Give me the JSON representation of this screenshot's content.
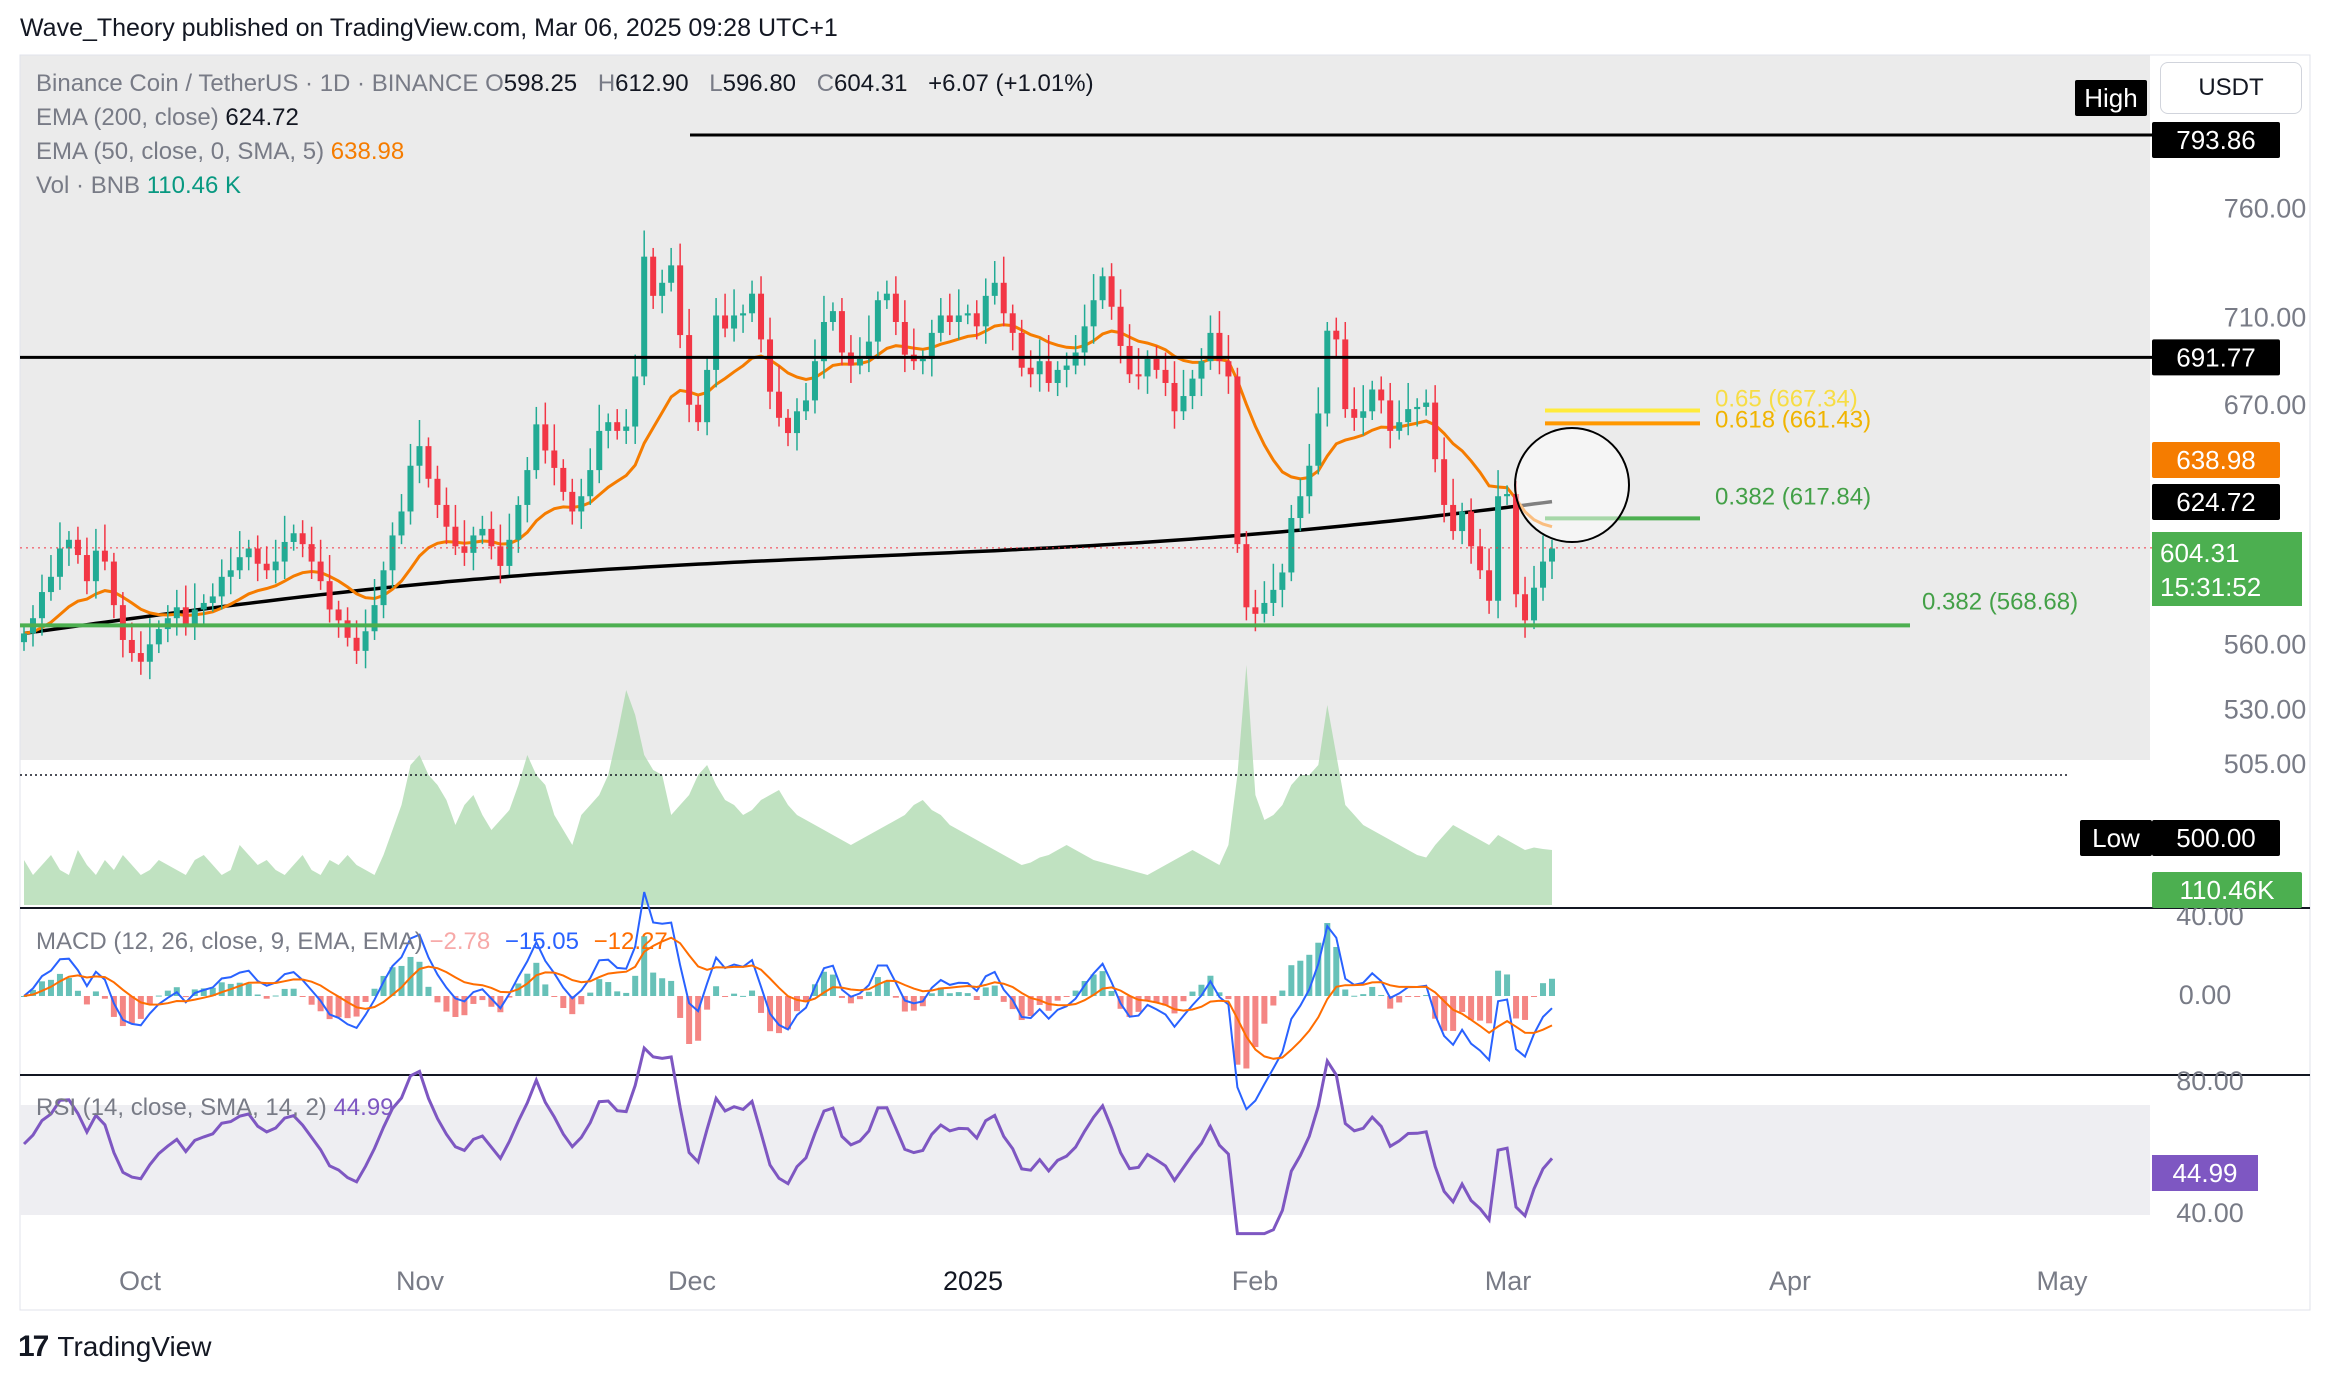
{
  "header": {
    "text": "Wave_Theory published on TradingView.com, Mar 06, 2025 09:28 UTC+1"
  },
  "legend": {
    "symbol": "Binance Coin / TetherUS · 1D · BINANCE",
    "o_label": "O",
    "o_value": "598.25",
    "h_label": "H",
    "h_value": "612.90",
    "l_label": "L",
    "l_value": "596.80",
    "c_label": "C",
    "c_value": "604.31",
    "change": "+6.07 (+1.01%)",
    "ema200_label": "EMA (200, close)",
    "ema200_value": "624.72",
    "ema50_label": "EMA (50, close, 0, SMA, 5)",
    "ema50_value": "638.98",
    "vol_label": "Vol · BNB",
    "vol_value": "110.46 K",
    "macd_label": "MACD (12, 26, close, 9, EMA, EMA)",
    "macd_hist": "−2.78",
    "macd_line": "−15.05",
    "macd_signal": "−12.27",
    "rsi_label": "RSI (14, close, SMA, 14, 2)",
    "rsi_value": "44.99"
  },
  "currency_button": "USDT",
  "brand": "TradingView",
  "colors": {
    "up": "#22ab94",
    "down": "#f23645",
    "ema50": "#f57c00",
    "ema200": "#000000",
    "macd": "#2962ff",
    "signal": "#ff6d00",
    "rsi": "#7e57c2",
    "fib_green": "#4caf50",
    "fib_yellow": "#ffeb3b",
    "fib_orange": "#ff9800",
    "price_badge": "#4caf50"
  },
  "chart_data": {
    "type": "candlestick",
    "symbol": "BNBUSDT",
    "timeframe": "1D",
    "x_ticks": [
      "Oct",
      "Nov",
      "Dec",
      "2025",
      "Feb",
      "Mar",
      "Apr",
      "May"
    ],
    "y_ticks": [
      "760.00",
      "710.00",
      "670.00",
      "560.00",
      "530.00",
      "505.00"
    ],
    "price_labels": {
      "high_tag": "High",
      "high": "793.86",
      "resistance": "691.77",
      "ema50": "638.98",
      "ema200": "624.72",
      "last": "604.31",
      "countdown": "15:31:52",
      "low_tag": "Low",
      "low": "500.00",
      "volume": "110.46K"
    },
    "fib_labels": {
      "f065": "0.65 (667.34)",
      "f0618": "0.618 (661.43)",
      "f0382_upper": "0.382 (617.84)",
      "f0382_lower": "0.382 (568.68)"
    },
    "levels": {
      "high": 793.86,
      "resistance": 691.77,
      "fib_0382_upper": 617.84,
      "fib_0382_lower": 568.68,
      "fib_0618": 661.43,
      "fib_065": 667.34,
      "low": 500.0
    },
    "macd_axis": [
      "40.00",
      "0.00"
    ],
    "rsi_axis": [
      "80.00",
      "44.99",
      "40.00"
    ],
    "closes": [
      565,
      572,
      584,
      591,
      604,
      608,
      601,
      589,
      603,
      598,
      578,
      562,
      556,
      552,
      560,
      567,
      572,
      577,
      568,
      576,
      579,
      582,
      591,
      594,
      600,
      604,
      597,
      594,
      598,
      607,
      611,
      606,
      598,
      589,
      576,
      571,
      563,
      557,
      566,
      578,
      594,
      610,
      621,
      642,
      651,
      636,
      624,
      614,
      605,
      602,
      610,
      613,
      605,
      596,
      608,
      624,
      640,
      661,
      649,
      641,
      630,
      621,
      628,
      640,
      658,
      662,
      658,
      660,
      683,
      738,
      720,
      726,
      734,
      702,
      670,
      662,
      686,
      711,
      705,
      711,
      712,
      721,
      700,
      676,
      664,
      657,
      667,
      672,
      690,
      708,
      713,
      694,
      688,
      691,
      699,
      718,
      721,
      708,
      693,
      690,
      691,
      703,
      711,
      708,
      711,
      712,
      706,
      720,
      726,
      712,
      703,
      687,
      684,
      690,
      680,
      686,
      688,
      694,
      706,
      718,
      729,
      715,
      697,
      684,
      683,
      691,
      686,
      680,
      667,
      674,
      682,
      690,
      703,
      690,
      683,
      606,
      577,
      574,
      579,
      585,
      593,
      618,
      628,
      642,
      666,
      704,
      700,
      668,
      664,
      667,
      677,
      672,
      658,
      662,
      668,
      669,
      671,
      645,
      624,
      612,
      621,
      605,
      594,
      580,
      628,
      629,
      583,
      571,
      586,
      598,
      604
    ],
    "volume_k": [
      90,
      60,
      80,
      100,
      70,
      60,
      110,
      80,
      60,
      90,
      70,
      100,
      80,
      60,
      70,
      90,
      80,
      70,
      60,
      90,
      100,
      80,
      60,
      70,
      120,
      100,
      80,
      90,
      70,
      60,
      80,
      100,
      70,
      60,
      90,
      80,
      100,
      80,
      70,
      60,
      100,
      150,
      200,
      280,
      300,
      260,
      240,
      210,
      160,
      200,
      220,
      180,
      150,
      170,
      190,
      240,
      300,
      260,
      240,
      180,
      150,
      120,
      180,
      200,
      220,
      260,
      340,
      430,
      380,
      300,
      270,
      260,
      180,
      200,
      220,
      260,
      280,
      240,
      210,
      200,
      180,
      190,
      210,
      220,
      230,
      200,
      180,
      170,
      160,
      150,
      140,
      130,
      120,
      130,
      140,
      150,
      160,
      170,
      180,
      200,
      210,
      190,
      180,
      160,
      150,
      140,
      130,
      120,
      110,
      100,
      90,
      80,
      85,
      95,
      100,
      110,
      120,
      110,
      100,
      90,
      85,
      80,
      75,
      70,
      65,
      60,
      70,
      80,
      90,
      100,
      110,
      100,
      90,
      80,
      120,
      260,
      480,
      220,
      170,
      180,
      200,
      240,
      260,
      260,
      280,
      400,
      300,
      200,
      180,
      160,
      150,
      140,
      130,
      120,
      110,
      100,
      95,
      120,
      140,
      160,
      150,
      140,
      130,
      120,
      140,
      130,
      120,
      110,
      115,
      112,
      110
    ]
  }
}
